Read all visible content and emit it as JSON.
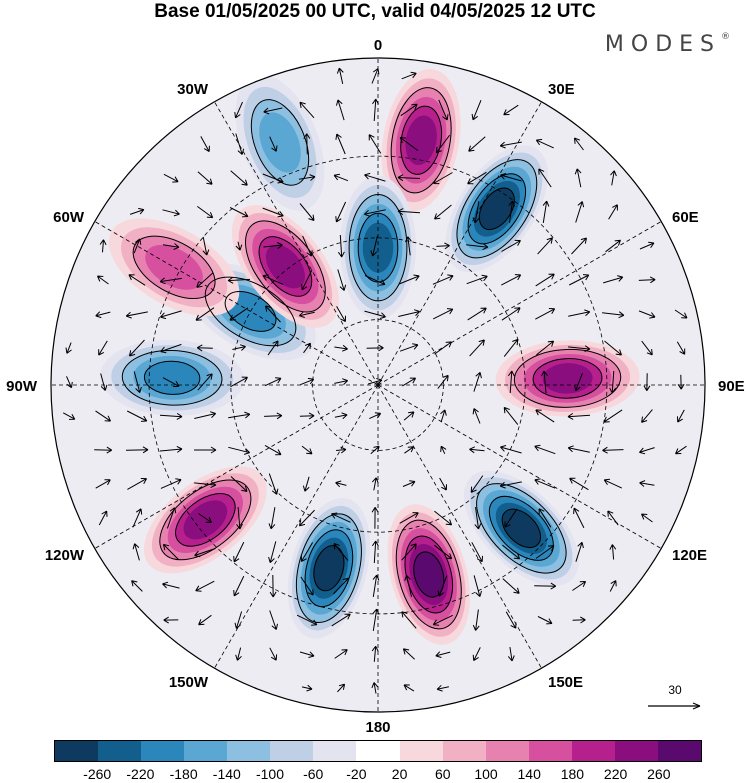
{
  "title": "Base 01/05/2025 00 UTC, valid 04/05/2025 12 UTC",
  "logo": {
    "text": "MODES",
    "mark": "®"
  },
  "map": {
    "projection": "south-polar-stereographic",
    "longitude_labels": {
      "top": "0",
      "top_right": "30E",
      "upper_right": "60E",
      "right": "90E",
      "lower_right": "120E",
      "bottom_right": "150E",
      "bottom": "180",
      "bottom_left": "150W",
      "lower_left": "120W",
      "left": "90W",
      "upper_left": "60W",
      "top_left": "30W"
    },
    "reference_vector_label": "30",
    "anomaly_centers": [
      {
        "name": "high-0",
        "bearing": 10,
        "distance": 0.76,
        "value": 220
      },
      {
        "name": "low-30E",
        "bearing": 34,
        "distance": 0.65,
        "value": -260
      },
      {
        "name": "low-near-0",
        "bearing": 0,
        "distance": 0.42,
        "value": -220
      },
      {
        "name": "high-60E",
        "bearing": 88,
        "distance": 0.58,
        "value": 220
      },
      {
        "name": "low-120E",
        "bearing": 135,
        "distance": 0.62,
        "value": -260
      },
      {
        "name": "high-150E",
        "bearing": 165,
        "distance": 0.6,
        "value": 260
      },
      {
        "name": "low-180",
        "bearing": 195,
        "distance": 0.58,
        "value": -260
      },
      {
        "name": "high-120W",
        "bearing": 232,
        "distance": 0.67,
        "value": 220
      },
      {
        "name": "low-90W",
        "bearing": 272,
        "distance": 0.63,
        "value": -180
      },
      {
        "name": "low-70W",
        "bearing": 300,
        "distance": 0.45,
        "value": -180
      },
      {
        "name": "high-45W",
        "bearing": 322,
        "distance": 0.46,
        "value": 220
      },
      {
        "name": "high-60W",
        "bearing": 300,
        "distance": 0.72,
        "value": 140
      },
      {
        "name": "low-30W",
        "bearing": 338,
        "distance": 0.8,
        "value": -140
      }
    ]
  },
  "colorbar": {
    "colors": [
      "#0d3a5e",
      "#125e8c",
      "#2a86bb",
      "#5aa7d4",
      "#8dbfe0",
      "#bfcfe6",
      "#e4e4f0",
      "#ffffff",
      "#f7d8dc",
      "#f2b0c4",
      "#e782b0",
      "#d6509f",
      "#b5208c",
      "#8a0e7e",
      "#5a0a6e"
    ],
    "tick_labels": [
      "-260",
      "-220",
      "-180",
      "-140",
      "-100",
      "-60",
      "-20",
      "20",
      "60",
      "100",
      "140",
      "180",
      "220",
      "260"
    ]
  }
}
